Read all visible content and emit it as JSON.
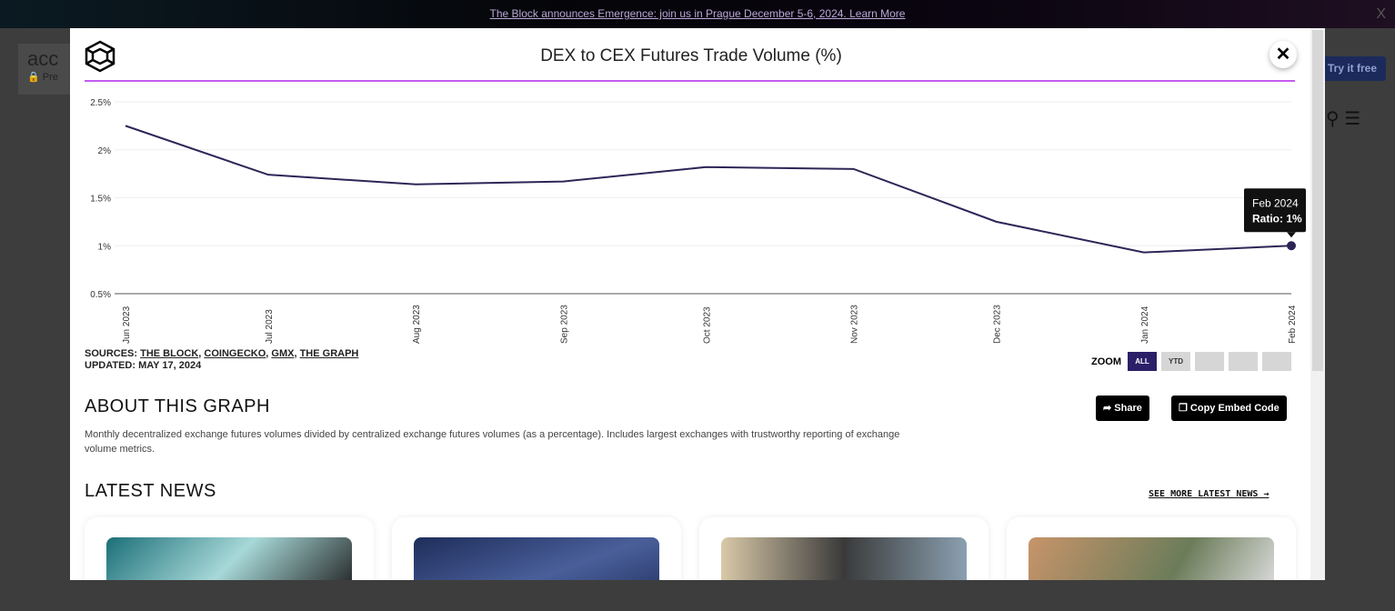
{
  "banner": {
    "text": "The Block announces Emergence: join us in Prague December 5-6, 2024. Learn More",
    "close": "X"
  },
  "background": {
    "logo_text": "acc",
    "premium": "🔒 Pre",
    "try_button": "Try it free"
  },
  "modal": {
    "title": "DEX to CEX Futures Trade Volume (%)",
    "close": "✕",
    "sources_label": "SOURCES:",
    "sources": [
      "THE BLOCK",
      "COINGECKO",
      "GMX",
      "THE GRAPH"
    ],
    "updated": "UPDATED: MAY 17, 2024",
    "zoom": {
      "label": "ZOOM",
      "buttons": [
        "ALL",
        "YTD",
        "",
        "",
        ""
      ],
      "active": "ALL"
    },
    "about_title": "ABOUT THIS GRAPH",
    "about_text": "Monthly decentralized exchange futures volumes divided by centralized exchange futures volumes (as a percentage). Includes largest exchanges with trustworthy reporting of exchange volume metrics.",
    "share": "Share",
    "embed": "Copy Embed Code",
    "news_title": "LATEST NEWS",
    "see_more": "SEE MORE LATEST NEWS →"
  },
  "chart_data": {
    "type": "line",
    "title": "DEX to CEX Futures Trade Volume (%)",
    "x": [
      "Jun 2023",
      "Jul 2023",
      "Aug 2023",
      "Sep 2023",
      "Oct 2023",
      "Nov 2023",
      "Dec 2023",
      "Jan 2024",
      "Feb 2024"
    ],
    "series": [
      {
        "values": [
          2.25,
          1.74,
          1.64,
          1.67,
          1.82,
          1.8,
          1.25,
          0.93,
          1.0
        ],
        "color": "#2e2557"
      }
    ],
    "yticks": [
      "0.5%",
      "1%",
      "1.5%",
      "2%",
      "2.5%"
    ],
    "ylim": [
      0.5,
      2.5
    ],
    "grid": true,
    "tooltip": {
      "title": "Feb 2024",
      "text": "Ratio: 1%"
    }
  }
}
